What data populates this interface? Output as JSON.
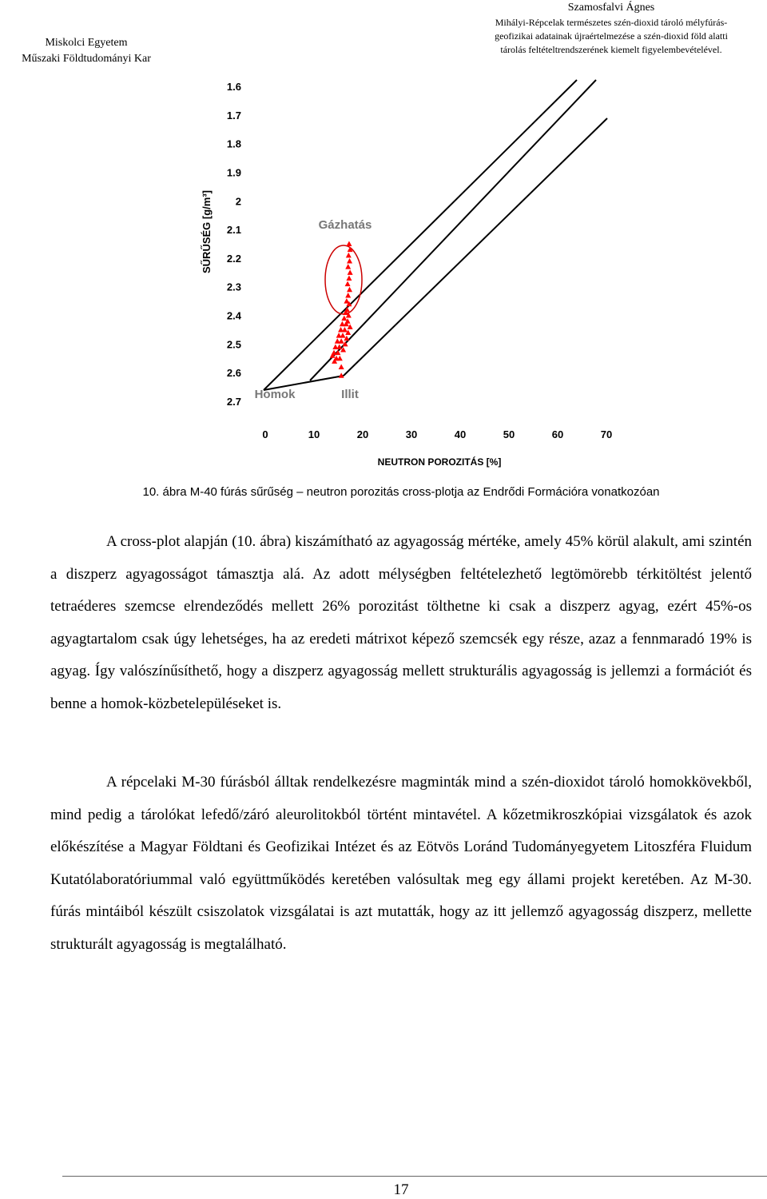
{
  "header": {
    "left": [
      "Miskolci Egyetem",
      "Műszaki Földtudományi Kar"
    ],
    "author": "Szamosfalvi Ágnes",
    "title_lines": [
      "Mihályi-Répcelak természetes szén-dioxid tároló mélyfúrás-",
      "geofizikai adatainak újraértelmezése a szén-dioxid föld alatti",
      "tárolás feltételtrendszerének kiemelt figyelembevételével."
    ]
  },
  "chart_data": {
    "type": "scatter",
    "x_label": "NEUTRON POROZITÁS [%]",
    "y_label": "SŰRŰSÉG [g/m³]",
    "annotations": [
      "Gázhatás",
      "Homok",
      "Illit"
    ],
    "color": "#ff0000",
    "xlim": [
      0,
      70
    ],
    "xticks": [
      0,
      10,
      20,
      30,
      40,
      50,
      60,
      70
    ],
    "ylim": [
      2.7,
      1.6
    ],
    "yticks": [
      1.6,
      1.7,
      1.8,
      1.9,
      2,
      2.1,
      2.2,
      2.3,
      2.4,
      2.5,
      2.6,
      2.7
    ],
    "x": [
      17.2,
      17.4,
      17.1,
      17.3,
      17.0,
      17.4,
      17.2,
      16.9,
      17.3,
      17.0,
      16.7,
      17.2,
      16.8,
      16.5,
      17.1,
      16.2,
      16.9,
      15.8,
      16.6,
      17.4,
      15.5,
      16.3,
      17.0,
      15.1,
      15.9,
      16.7,
      14.8,
      15.6,
      16.4,
      14.4,
      15.2,
      16.0,
      14.1,
      14.9,
      13.8,
      14.6,
      15.3,
      14.2,
      15.6,
      15.6
    ],
    "values": [
      2.15,
      2.17,
      2.19,
      2.21,
      2.23,
      2.25,
      2.27,
      2.29,
      2.31,
      2.33,
      2.35,
      2.36,
      2.38,
      2.39,
      2.4,
      2.41,
      2.42,
      2.43,
      2.43,
      2.44,
      2.45,
      2.45,
      2.46,
      2.47,
      2.47,
      2.48,
      2.49,
      2.49,
      2.5,
      2.51,
      2.51,
      2.52,
      2.53,
      2.53,
      2.54,
      2.55,
      2.55,
      2.56,
      2.58,
      2.61
    ]
  },
  "caption": "10. ábra M-40 fúrás sűrűség – neutron porozitás cross-plotja az Endrődi Formációra vonatkozóan",
  "paragraphs": [
    "A cross-plot alapján (10. ábra) kiszámítható az agyagosság mértéke, amely 45% körül alakult, ami szintén a diszperz agyagosságot támasztja alá. Az adott mélységben feltételezhető legtömörebb térkitöltést jelentő tetraéderes szemcse elrendeződés mellett 26% porozitást tölthetne ki csak a diszperz agyag, ezért 45%-os agyagtartalom csak úgy lehetséges, ha az eredeti mátrixot képező szemcsék egy része, azaz a fennmaradó 19% is agyag. Így valószínűsíthető, hogy a diszperz agyagosság mellett strukturális agyagosság is jellemzi a formációt és benne a homok-közbetelepüléseket is.",
    "A répcelaki M-30 fúrásból álltak rendelkezésre magminták mind a szén-dioxidot tároló homokkövekből, mind pedig a tárolókat lefedő/záró aleurolitokból történt mintavétel. A kőzetmikroszkópiai vizsgálatok és azok előkészítése a Magyar Földtani és Geofizikai Intézet és az Eötvös Loránd Tudományegyetem Litoszféra Fluidum Kutatólaboratóriummal való együttműködés keretében valósultak meg egy állami projekt keretében. Az M-30. fúrás mintáiból készült csiszolatok vizsgálatai is azt mutatták, hogy az itt jellemző agyagosság diszperz, mellette strukturált agyagosság is megtalálható."
  ],
  "page_number": "17"
}
